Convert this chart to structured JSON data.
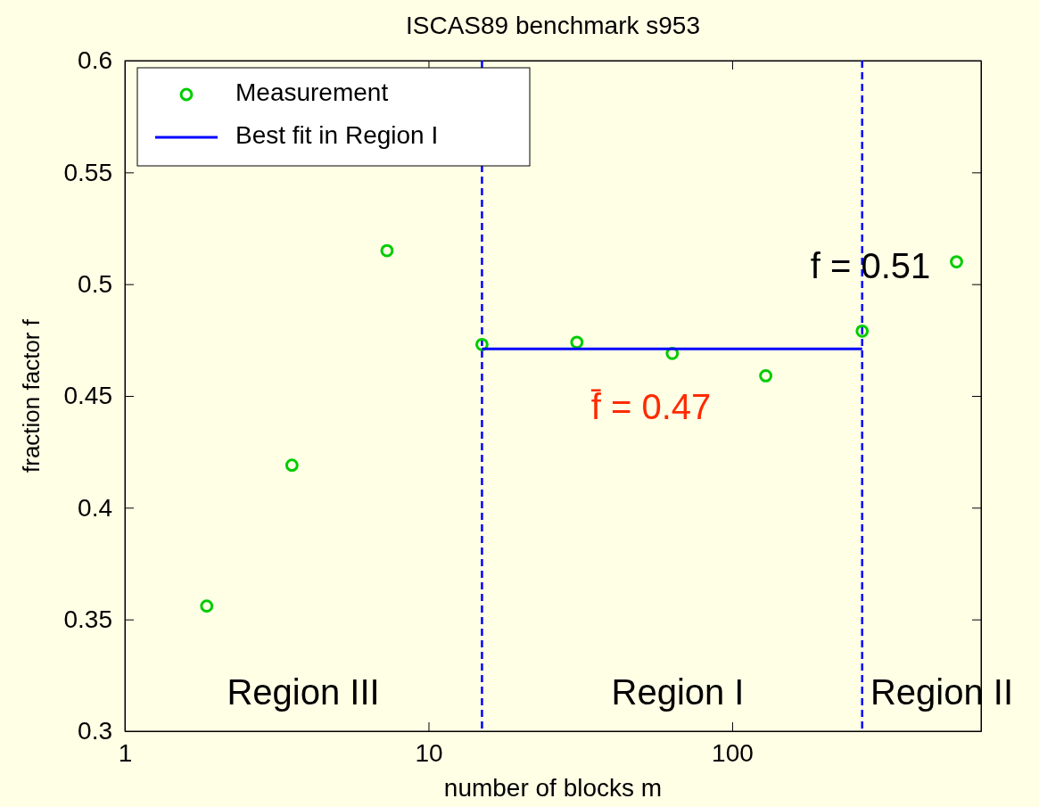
{
  "chart_data": {
    "type": "scatter",
    "title": "ISCAS89 benchmark s953",
    "xlabel": "number of blocks m",
    "ylabel": "fraction factor f",
    "log": "x",
    "xlim": [
      1,
      660
    ],
    "xticks": [
      1,
      10,
      100
    ],
    "ylim": [
      0.3,
      0.6
    ],
    "yticks": [
      0.3,
      0.35,
      0.4,
      0.45,
      0.5,
      0.55,
      0.6
    ],
    "grid": false,
    "legend": "top left",
    "series": [
      {
        "name": "Measurement",
        "marker": "circle",
        "color": "#00cc00",
        "x": [
          1.86,
          3.55,
          7.3,
          15,
          30.8,
          63.5,
          129,
          268,
          548
        ],
        "values": [
          0.356,
          0.419,
          0.515,
          0.473,
          0.474,
          0.469,
          0.459,
          0.479,
          0.51
        ]
      },
      {
        "name": "Best fit in Region I",
        "type": "line",
        "marker": "none",
        "color": "#0000ff",
        "line_style": "solid",
        "x": [
          15,
          268
        ],
        "values": [
          0.471,
          0.471
        ]
      }
    ],
    "ref_lines": [
      {
        "axis": "x",
        "value": 15,
        "color": "#0000ff",
        "line_style": "dashed"
      },
      {
        "axis": "x",
        "value": 268,
        "color": "#0000ff",
        "line_style": "dashed"
      }
    ],
    "annotations": [
      "Region III",
      "Region I",
      "Region II",
      "f̄ = 0.47",
      "f = 0.51"
    ]
  }
}
